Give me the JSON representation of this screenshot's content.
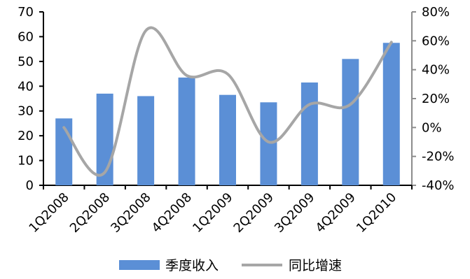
{
  "chart_data": {
    "type": "bar",
    "categories": [
      "1Q2008",
      "2Q2008",
      "3Q2008",
      "4Q2008",
      "1Q2009",
      "2Q2009",
      "3Q2009",
      "4Q2009",
      "1Q2010"
    ],
    "series": [
      {
        "name": "季度收入",
        "type": "bar",
        "axis": "left",
        "color": "#5b8fd6",
        "values": [
          27,
          37,
          36,
          43.5,
          36.5,
          33.5,
          41.5,
          51,
          57.5
        ]
      },
      {
        "name": "同比增速",
        "type": "line",
        "axis": "right",
        "color": "#a6a6a6",
        "smooth": true,
        "values": [
          0,
          -31,
          67,
          36,
          37,
          -10,
          16,
          16,
          59
        ]
      }
    ],
    "ylim_left": [
      0,
      70
    ],
    "yticks_left": [
      0,
      10,
      20,
      30,
      40,
      50,
      60,
      70
    ],
    "ylim_right": [
      -40,
      80
    ],
    "yticks_right": [
      "-40%",
      "-20%",
      "0%",
      "20%",
      "40%",
      "60%",
      "80%"
    ],
    "grid": false,
    "legend": {
      "position": "bottom",
      "items": [
        "季度收入",
        "同比增速"
      ]
    }
  }
}
